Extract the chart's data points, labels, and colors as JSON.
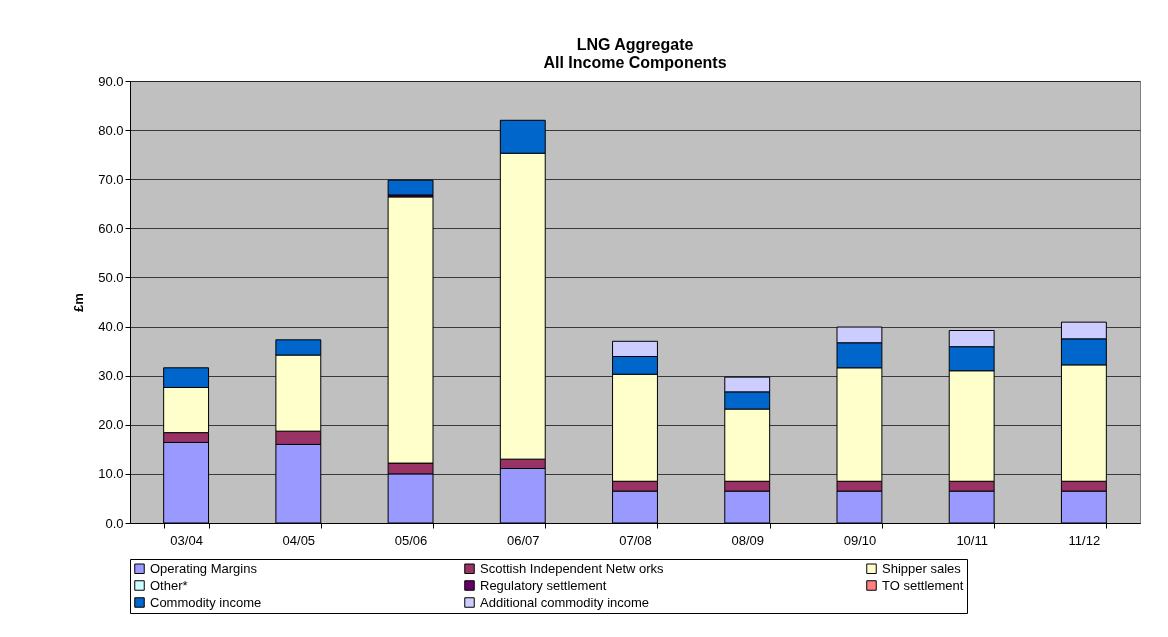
{
  "chart_data": {
    "type": "bar",
    "title": "LNG Aggregate",
    "subtitle": "All Income Components",
    "ylabel": "£m",
    "stacked": true,
    "categories": [
      "03/04",
      "04/05",
      "05/06",
      "06/07",
      "07/08",
      "08/09",
      "09/10",
      "10/11",
      "11/12"
    ],
    "series": [
      {
        "name": "Operating Margins",
        "color": "#9999ff",
        "values": [
          16.4,
          16.0,
          10.0,
          11.1,
          6.5,
          6.5,
          6.5,
          6.5,
          6.5
        ]
      },
      {
        "name": "Scottish Independent Netw orks",
        "color": "#993366",
        "values": [
          2.0,
          2.7,
          2.2,
          1.9,
          2.0,
          2.0,
          2.0,
          2.0,
          2.0
        ]
      },
      {
        "name": "Shipper sales",
        "color": "#ffffcc",
        "values": [
          9.2,
          15.5,
          54.2,
          62.3,
          21.8,
          14.7,
          23.1,
          22.5,
          23.7
        ]
      },
      {
        "name": "Other*",
        "color": "#ccffff",
        "values": [
          null,
          null,
          null,
          null,
          null,
          null,
          null,
          null,
          null
        ]
      },
      {
        "name": "Regulatory settlement",
        "color": "#660066",
        "values": [
          null,
          null,
          0.4,
          null,
          null,
          null,
          null,
          null,
          null
        ]
      },
      {
        "name": "TO settlement",
        "color": "#ff8080",
        "values": [
          null,
          null,
          null,
          null,
          null,
          null,
          null,
          null,
          null
        ]
      },
      {
        "name": "Commodity income",
        "color": "#0066cc",
        "values": [
          4.0,
          3.1,
          3.0,
          6.7,
          3.6,
          3.5,
          5.1,
          4.9,
          5.3
        ]
      },
      {
        "name": "Additional commodity income",
        "color": "#ccccff",
        "values": [
          null,
          null,
          null,
          null,
          3.1,
          3.0,
          3.2,
          3.3,
          3.4
        ]
      }
    ],
    "ylim": [
      0,
      90
    ],
    "yticks": [
      {
        "value": 0,
        "label": "0.0"
      },
      {
        "value": 10,
        "label": "10.0"
      },
      {
        "value": 20,
        "label": "20.0"
      },
      {
        "value": 30,
        "label": "30.0"
      },
      {
        "value": 40,
        "label": "40.0"
      },
      {
        "value": 50,
        "label": "50.0"
      },
      {
        "value": 60,
        "label": "60.0"
      },
      {
        "value": 70,
        "label": "70.0"
      },
      {
        "value": 80,
        "label": "80.0"
      },
      {
        "value": 90,
        "label": "90.0"
      }
    ],
    "grid": "y",
    "legend": "bottom"
  }
}
